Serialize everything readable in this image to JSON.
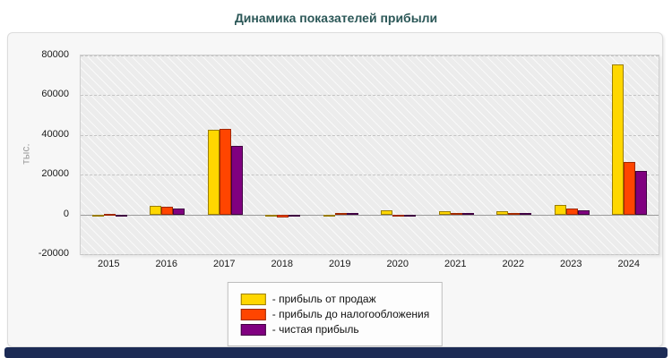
{
  "window": {
    "bottom_bar_color": "#1c2b55"
  },
  "chart_data": {
    "type": "bar",
    "title": "Динамика показателей прибыли",
    "title_color": "#2b5757",
    "xlabel": "",
    "ylabel": "тыс.",
    "categories": [
      "2015",
      "2016",
      "2017",
      "2018",
      "2019",
      "2020",
      "2021",
      "2022",
      "2023",
      "2024"
    ],
    "series": [
      {
        "name": "прибыль от продаж",
        "color": "#FFD700",
        "border": "#9a7d00",
        "values": [
          -700,
          4500,
          42500,
          -900,
          -600,
          2000,
          1700,
          1500,
          5000,
          75500
        ]
      },
      {
        "name": "прибыль до налогообложения",
        "color": "#FF4500",
        "border": "#a02800",
        "values": [
          400,
          4000,
          43000,
          -1500,
          700,
          -400,
          900,
          800,
          2800,
          26500
        ]
      },
      {
        "name": "чистая прибыль",
        "color": "#800080",
        "border": "#3f0040",
        "values": [
          -600,
          3000,
          34700,
          -500,
          600,
          -600,
          600,
          500,
          2000,
          21800
        ]
      }
    ],
    "legend": [
      "- прибыль от продаж",
      "- прибыль до налогообложения",
      "- чистая прибыль"
    ],
    "legend_position": "bottom-center",
    "ylim": [
      -20000,
      80000
    ],
    "y_ticks": [
      80000,
      60000,
      40000,
      20000,
      0,
      -20000
    ],
    "grid": "dashed-horizontal"
  }
}
